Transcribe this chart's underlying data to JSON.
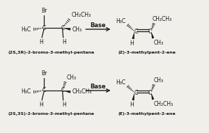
{
  "bg_color": "#f0efea",
  "line_color": "#1a1a1a",
  "title_top": "(2S,3R)-2-bromo-3-methyl-pentane",
  "title_top_product": "(Z)-3-methylpent-2-ene",
  "title_bot": "(2S,3S)-2-bromo-3-methyl-pentane",
  "title_bot_product": "(E)-3-methylpent-2-ene",
  "base_label": "Base"
}
